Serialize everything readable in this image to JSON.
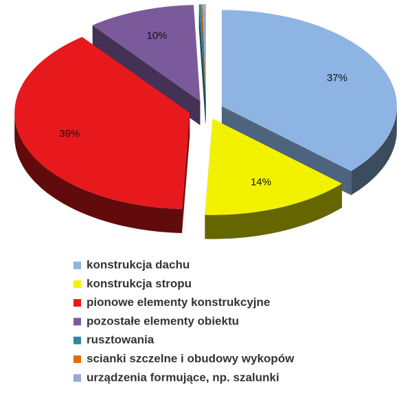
{
  "chart_data": {
    "type": "pie",
    "categories": [
      "konstrukcja dachu",
      "konstrukcja stropu",
      "pionowe elementy konstrukcyjne",
      "pozostałe elementy obiektu",
      "rusztowania",
      "scianki szczelne i obudowy wykopów",
      "urządzenia formujące, np. szalunki"
    ],
    "values": [
      37,
      14,
      39,
      10,
      0.2,
      0.1,
      0.3
    ],
    "value_labels": [
      "37%",
      "14%",
      "39%",
      "10%",
      null,
      null,
      null
    ],
    "colors": [
      "#8eb4e3",
      "#f2f200",
      "#e8191d",
      "#7b5a9c",
      "#31859c",
      "#e46c0a",
      "#95a9d6"
    ]
  }
}
